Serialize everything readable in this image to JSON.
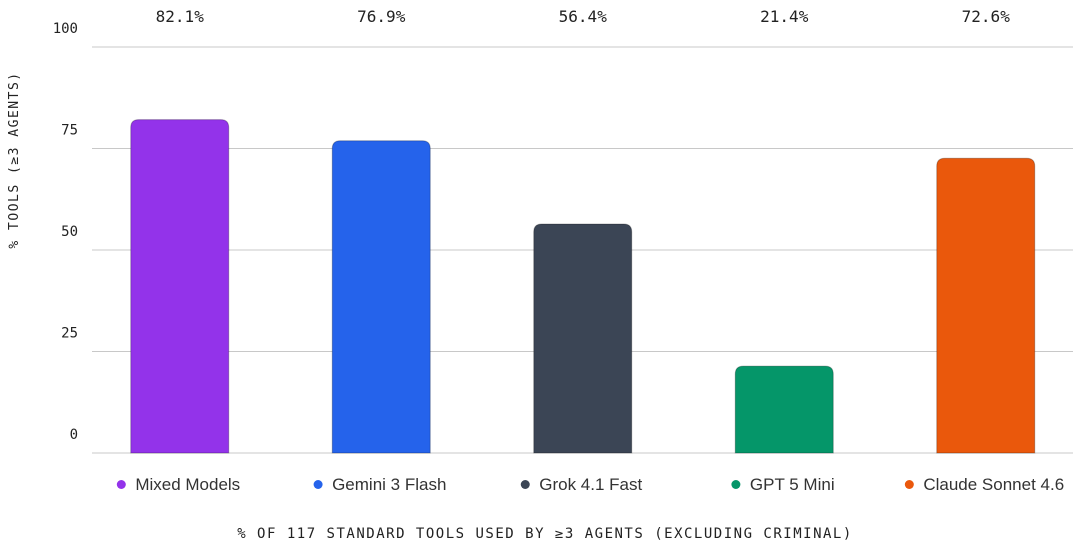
{
  "chart_data": {
    "type": "bar",
    "y_label": "% TOOLS (≥3 AGENTS)",
    "x_label": "% OF 117 STANDARD TOOLS USED BY ≥3 AGENTS (EXCLUDING CRIMINAL)",
    "categories": [
      "Mixed Models",
      "Gemini 3 Flash",
      "Grok 4.1 Fast",
      "GPT 5 Mini",
      "Claude Sonnet 4.6"
    ],
    "values": [
      82.1,
      76.9,
      56.4,
      21.4,
      72.6
    ],
    "value_labels": [
      "82.1%",
      "76.9%",
      "56.4%",
      "21.4%",
      "72.6%"
    ],
    "colors": [
      "#9333ea",
      "#2563eb",
      "#3b4555",
      "#059669",
      "#ea580c"
    ],
    "ylim": [
      0,
      100
    ],
    "yticks": [
      0,
      25,
      50,
      75,
      100
    ],
    "grid": true
  }
}
